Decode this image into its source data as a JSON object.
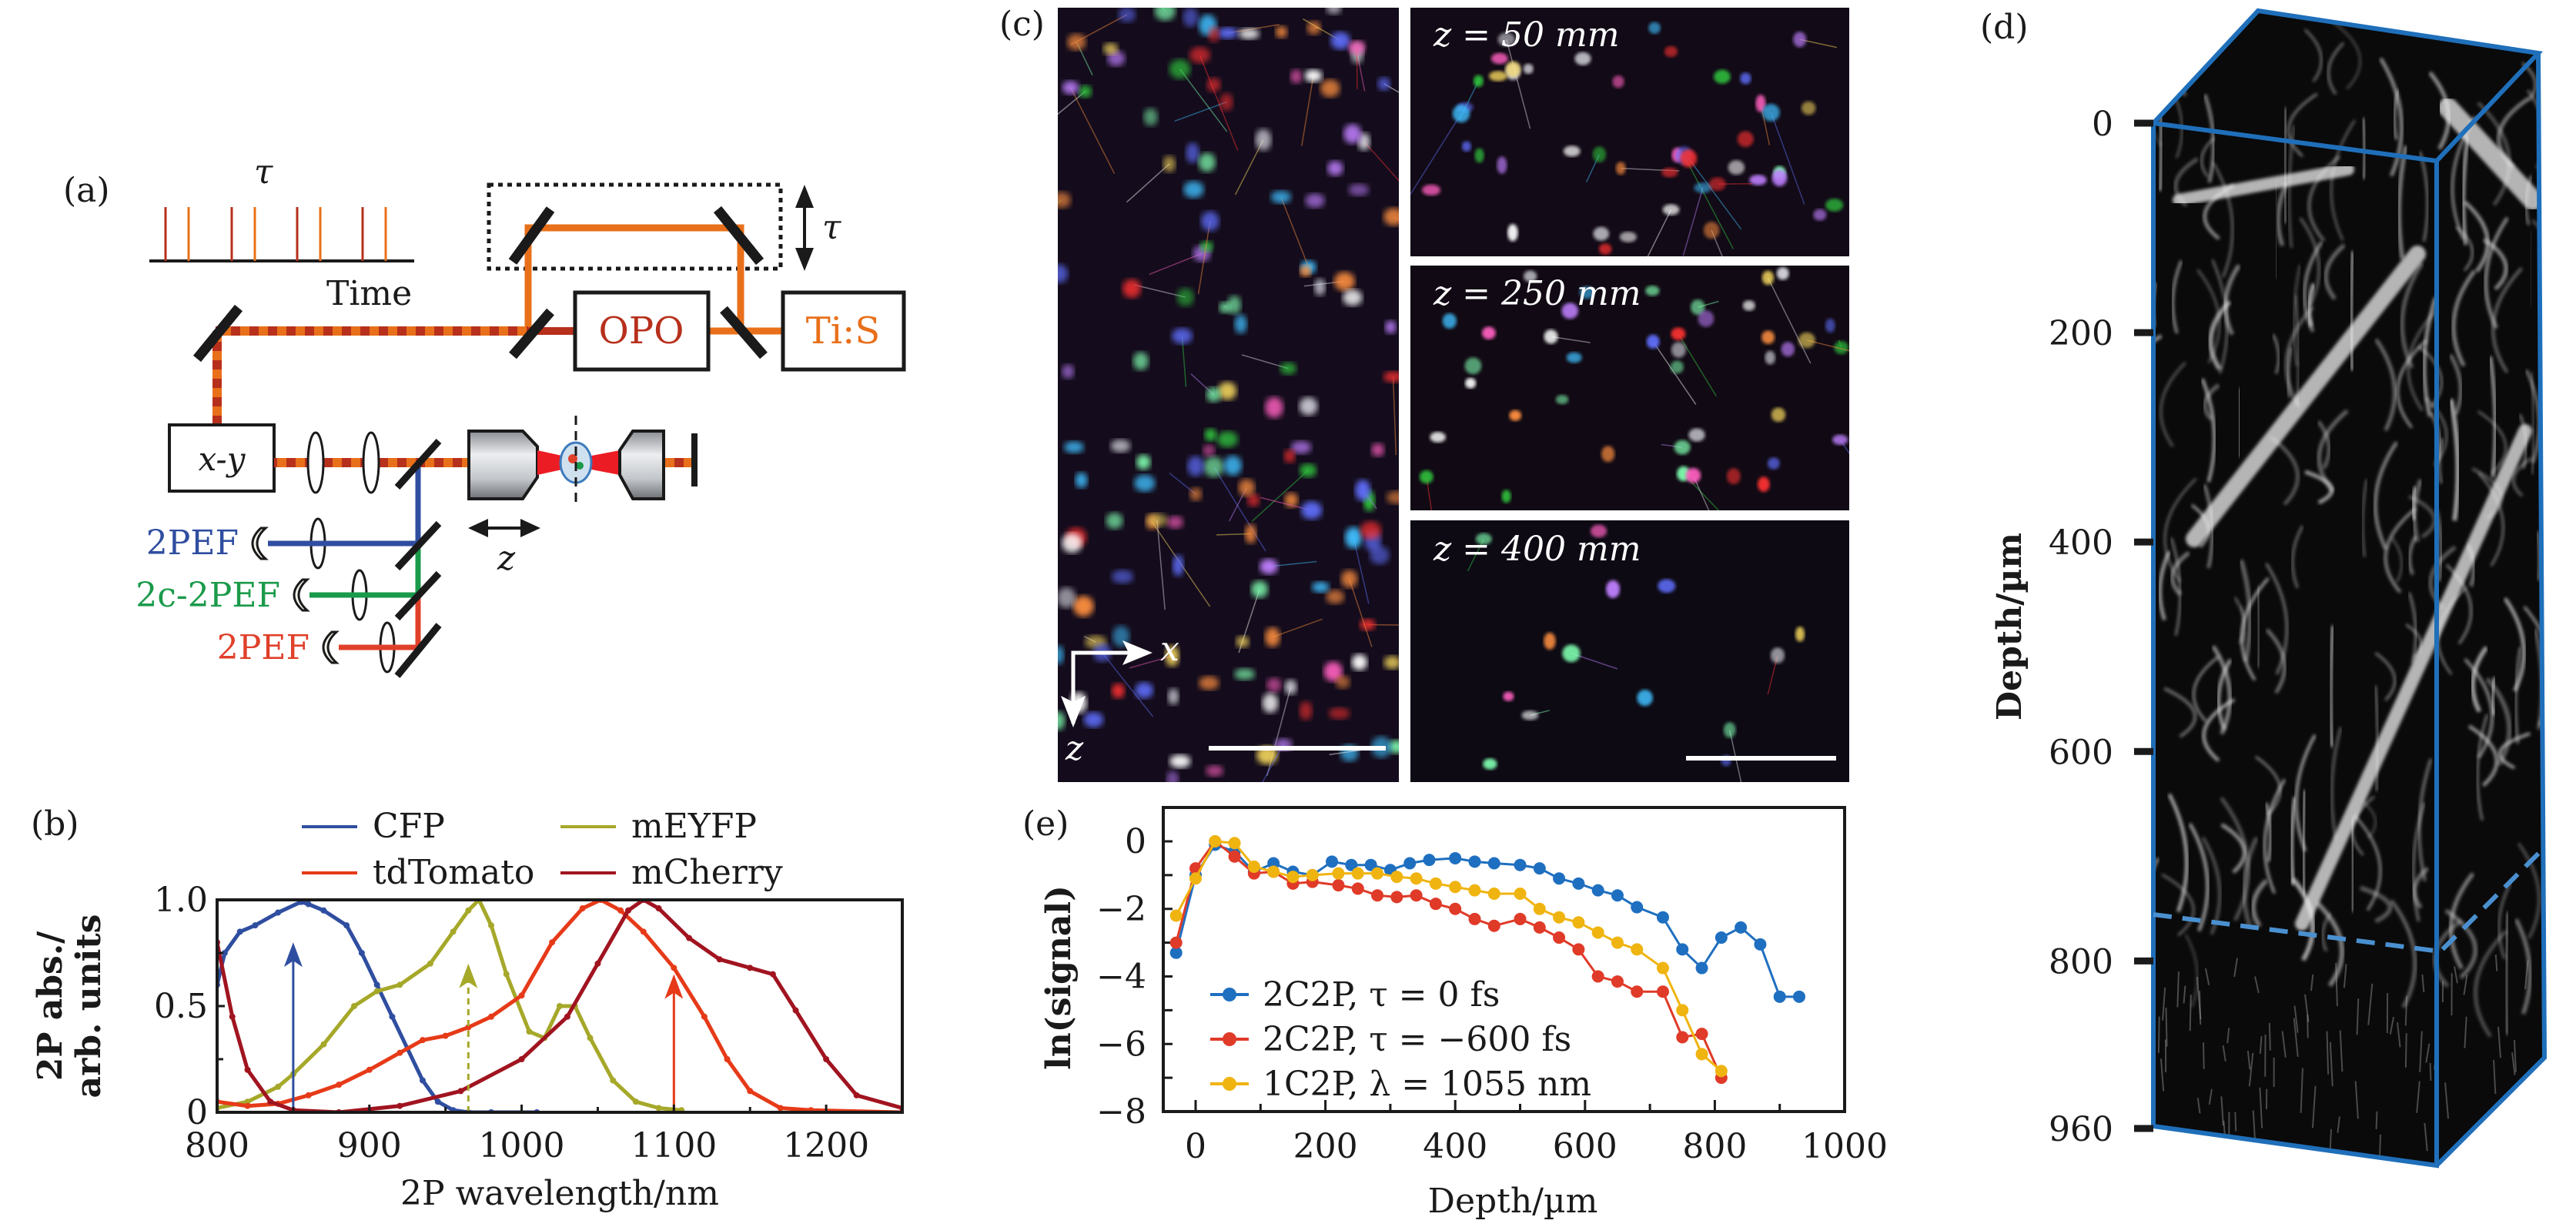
{
  "figure": {
    "panel_labels": {
      "a": "(a)",
      "b": "(b)",
      "c": "(c)",
      "d": "(d)",
      "e": "(e)"
    }
  },
  "panel_a": {
    "pulse_train_label": "τ",
    "time_label": "Time",
    "delay_label": "τ",
    "opo_label": "OPO",
    "tis_label": "Ti:S",
    "scanner_label": "x-y",
    "z_label": "z",
    "detectors": [
      {
        "label": "2PEF",
        "color": "#2f4ea0"
      },
      {
        "label": "2c-2PEF",
        "color": "#1a9a4a"
      },
      {
        "label": "2PEF",
        "color": "#e0402a"
      }
    ],
    "colors": {
      "opo_beam": "#b7301c",
      "tis_beam": "#e8701a",
      "black": "#1a1a1a"
    }
  },
  "panel_c": {
    "depth_labels": [
      "z = 50 mm",
      "z = 250 mm",
      "z = 400 mm"
    ],
    "axis_x": "x",
    "axis_z": "z"
  },
  "panel_d": {
    "ylabel": "Depth/µm",
    "ticks": [
      "0",
      "200",
      "400",
      "600",
      "800",
      "960"
    ],
    "frame_color": "#1f6fba",
    "dashed_color": "#4a90d0"
  },
  "chart_data": [
    {
      "id": "b",
      "type": "line",
      "title": "",
      "xlabel": "2P wavelength/nm",
      "ylabel": "2P abs./ arb. units",
      "ylabel_lines": [
        "2P abs./",
        "arb. units"
      ],
      "xlim": [
        800,
        1250
      ],
      "ylim": [
        0,
        1.0
      ],
      "xticks": [
        800,
        900,
        1000,
        1100,
        1200
      ],
      "xtick_labels": [
        "800",
        "900",
        "1000",
        "1100",
        "1200"
      ],
      "yticks": [
        0,
        0.5,
        1.0
      ],
      "ytick_labels": [
        "0",
        "0.5",
        "1.0"
      ],
      "legend_position": "top",
      "series": [
        {
          "name": "CFP",
          "color": "#2f4ea0",
          "x": [
            800,
            805,
            815,
            825,
            840,
            855,
            860,
            870,
            885,
            895,
            905,
            915,
            925,
            935,
            945,
            955,
            965,
            980,
            1010
          ],
          "y": [
            0.6,
            0.75,
            0.85,
            0.88,
            0.94,
            0.99,
            0.98,
            0.95,
            0.88,
            0.75,
            0.6,
            0.45,
            0.3,
            0.15,
            0.05,
            0.01,
            0.0,
            0.0,
            0.0
          ]
        },
        {
          "name": "mEYFP",
          "color": "#a6a82a",
          "x": [
            800,
            820,
            840,
            850,
            870,
            890,
            905,
            920,
            940,
            955,
            965,
            972,
            980,
            990,
            1005,
            1015,
            1025,
            1035,
            1045,
            1060,
            1075,
            1090,
            1105
          ],
          "y": [
            0.02,
            0.05,
            0.12,
            0.18,
            0.32,
            0.5,
            0.57,
            0.6,
            0.7,
            0.85,
            0.95,
            1.0,
            0.88,
            0.65,
            0.38,
            0.35,
            0.5,
            0.5,
            0.35,
            0.15,
            0.05,
            0.02,
            0.01
          ]
        },
        {
          "name": "tdTomato",
          "color": "#e63a18",
          "x": [
            800,
            820,
            840,
            860,
            880,
            900,
            920,
            935,
            950,
            965,
            980,
            1000,
            1020,
            1040,
            1052,
            1065,
            1080,
            1100,
            1120,
            1135,
            1150,
            1170,
            1190,
            1250
          ],
          "y": [
            0.05,
            0.03,
            0.04,
            0.08,
            0.13,
            0.2,
            0.28,
            0.34,
            0.36,
            0.4,
            0.45,
            0.55,
            0.8,
            0.96,
            1.0,
            0.95,
            0.85,
            0.68,
            0.45,
            0.25,
            0.1,
            0.02,
            0.01,
            0.0
          ]
        },
        {
          "name": "mCherry",
          "color": "#a01420",
          "x": [
            800,
            810,
            820,
            835,
            850,
            880,
            920,
            960,
            1000,
            1030,
            1050,
            1070,
            1080,
            1090,
            1110,
            1130,
            1150,
            1165,
            1180,
            1200,
            1220,
            1250
          ],
          "y": [
            0.8,
            0.45,
            0.2,
            0.05,
            0.01,
            0.0,
            0.03,
            0.1,
            0.25,
            0.45,
            0.7,
            0.95,
            1.0,
            0.96,
            0.82,
            0.72,
            0.68,
            0.65,
            0.48,
            0.25,
            0.08,
            0.02
          ]
        }
      ],
      "annotations": [
        {
          "type": "arrow",
          "x": 850,
          "y_from": 0,
          "y_to": 0.8,
          "color": "#2f4ea0",
          "style": "solid"
        },
        {
          "type": "arrow",
          "x": 965,
          "y_from": 0,
          "y_to": 0.7,
          "color": "#a6a82a",
          "style": "dashed"
        },
        {
          "type": "arrow",
          "x": 1100,
          "y_from": 0,
          "y_to": 0.65,
          "color": "#e63a18",
          "style": "solid"
        }
      ]
    },
    {
      "id": "e",
      "type": "line",
      "title": "",
      "xlabel": "Depth/µm",
      "ylabel": "ln(signal)",
      "xlim": [
        -50,
        1000
      ],
      "ylim": [
        -8,
        1
      ],
      "xticks": [
        0,
        200,
        400,
        600,
        800,
        1000
      ],
      "xtick_labels": [
        "0",
        "200",
        "400",
        "600",
        "800",
        "1000"
      ],
      "yticks": [
        0,
        -2,
        -4,
        -6,
        -8
      ],
      "ytick_labels": [
        "0",
        "−2",
        "−4",
        "−6",
        "−8"
      ],
      "legend_position": "bottom-left",
      "series": [
        {
          "name": "2C2P, τ = 0 fs",
          "color": "#1f6fc0",
          "x": [
            -30,
            0,
            30,
            60,
            90,
            120,
            150,
            180,
            210,
            240,
            270,
            300,
            330,
            360,
            400,
            430,
            460,
            500,
            530,
            560,
            590,
            620,
            650,
            680,
            720,
            750,
            780,
            810,
            840,
            870,
            900,
            930
          ],
          "y": [
            -3.3,
            -1.0,
            -0.1,
            -0.3,
            -0.9,
            -0.65,
            -0.9,
            -1.0,
            -0.6,
            -0.7,
            -0.7,
            -0.85,
            -0.65,
            -0.55,
            -0.5,
            -0.6,
            -0.65,
            -0.7,
            -0.8,
            -1.1,
            -1.25,
            -1.45,
            -1.6,
            -1.95,
            -2.25,
            -3.2,
            -3.75,
            -2.85,
            -2.55,
            -3.05,
            -4.6,
            -4.6
          ]
        },
        {
          "name": "2C2P, τ = −600 fs",
          "color": "#e03a28",
          "x": [
            -30,
            0,
            30,
            60,
            90,
            120,
            150,
            180,
            220,
            250,
            280,
            310,
            340,
            370,
            400,
            430,
            460,
            500,
            530,
            560,
            590,
            620,
            650,
            680,
            720,
            750,
            780,
            810
          ],
          "y": [
            -3.0,
            -0.8,
            0.0,
            -0.45,
            -0.95,
            -0.9,
            -1.25,
            -1.2,
            -1.3,
            -1.4,
            -1.6,
            -1.65,
            -1.6,
            -1.85,
            -2.0,
            -2.3,
            -2.5,
            -2.3,
            -2.55,
            -2.85,
            -3.2,
            -4.0,
            -4.15,
            -4.45,
            -4.45,
            -5.8,
            -5.7,
            -7.0
          ]
        },
        {
          "name": "1C2P, λ = 1055 nm",
          "color": "#f0b410",
          "x": [
            -30,
            0,
            30,
            60,
            90,
            120,
            150,
            180,
            220,
            250,
            280,
            310,
            340,
            370,
            400,
            430,
            460,
            500,
            530,
            560,
            590,
            620,
            650,
            680,
            720,
            750,
            780,
            810
          ],
          "y": [
            -2.2,
            -1.1,
            0.0,
            -0.05,
            -0.75,
            -0.9,
            -1.05,
            -1.0,
            -0.95,
            -0.95,
            -0.95,
            -1.05,
            -1.1,
            -1.25,
            -1.35,
            -1.45,
            -1.55,
            -1.55,
            -2.0,
            -2.25,
            -2.4,
            -2.7,
            -3.0,
            -3.2,
            -3.75,
            -5.0,
            -6.3,
            -6.8
          ]
        }
      ]
    }
  ]
}
